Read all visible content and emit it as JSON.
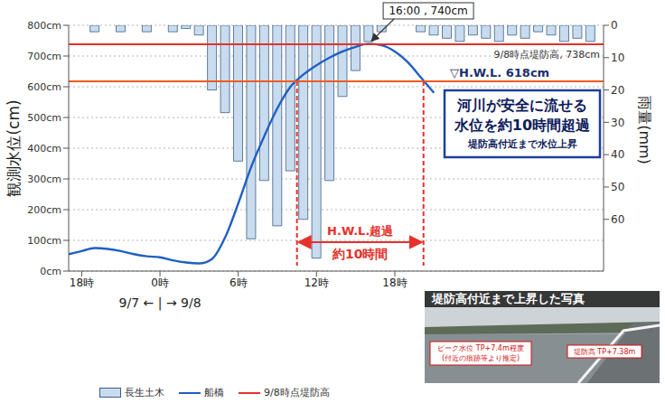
{
  "chart_data": {
    "type": "combo",
    "x": [
      17,
      18,
      19,
      20,
      21,
      22,
      23,
      24,
      25,
      26,
      27,
      28,
      29,
      30,
      31,
      32,
      33,
      34,
      35,
      36,
      37,
      38,
      39,
      40,
      41,
      42,
      43,
      44,
      45,
      46,
      47,
      48,
      49,
      50,
      51,
      52,
      53,
      54,
      55,
      56,
      57
    ],
    "xlim": [
      17,
      58
    ],
    "xticks": [
      {
        "value": 18,
        "label": "18時"
      },
      {
        "value": 24,
        "label": "0時"
      },
      {
        "value": 30,
        "label": "6時"
      },
      {
        "value": 36,
        "label": "12時"
      },
      {
        "value": 42,
        "label": "18時"
      }
    ],
    "y_label": "観測水位(cm)",
    "ylim": [
      0,
      800
    ],
    "yticks": [
      {
        "value": 0,
        "label": "0cm"
      },
      {
        "value": 100,
        "label": "100cm"
      },
      {
        "value": 200,
        "label": "200cm"
      },
      {
        "value": 300,
        "label": "300cm"
      },
      {
        "value": 400,
        "label": "400cm"
      },
      {
        "value": 500,
        "label": "500cm"
      },
      {
        "value": 600,
        "label": "600cm"
      },
      {
        "value": 700,
        "label": "700cm"
      },
      {
        "value": 800,
        "label": "800cm"
      }
    ],
    "y2_label": "雨量(mm)",
    "y2lim": [
      76,
      0
    ],
    "y2ticks": [
      0,
      10,
      20,
      30,
      40,
      50,
      60
    ],
    "grid": true,
    "legend": "bottom",
    "series": [
      {
        "name": "長生土木",
        "type": "bar",
        "axis": "y2",
        "color": "#c9dcef",
        "values": [
          null,
          0,
          2,
          0,
          2,
          0,
          2,
          0,
          2,
          1,
          3,
          20,
          27,
          42,
          66,
          48,
          62,
          45,
          60,
          72,
          48,
          22,
          14,
          5,
          2,
          0,
          0,
          2,
          3,
          4,
          5,
          3,
          4,
          5,
          3,
          4,
          2,
          3,
          5,
          4,
          5
        ]
      },
      {
        "name": "船橋",
        "type": "line",
        "axis": "y",
        "color": "#1f5fc4",
        "marker": "none",
        "line_style": "solid",
        "values": [
          55,
          65,
          75,
          72,
          65,
          55,
          48,
          45,
          35,
          28,
          25,
          40,
          110,
          220,
          340,
          440,
          530,
          600,
          640,
          670,
          695,
          715,
          730,
          740,
          735,
          715,
          680,
          630,
          580,
          null,
          null,
          null,
          null,
          null,
          null,
          null,
          null,
          null,
          null,
          null,
          null
        ]
      }
    ],
    "reference_lines": [
      {
        "name": "9/8時点堤防高",
        "y": 738,
        "color": "#e8302a",
        "label": "9/8時点堤防高, 738cm"
      },
      {
        "y": 618,
        "color": "#ef5b22",
        "label": "▽H.W.L. 618cm"
      }
    ],
    "peak": {
      "text": "16:00 , 740cm",
      "x": 40,
      "y": 740
    },
    "exceedance": {
      "text": "H.W.L.超過",
      "subtext": "約10時間",
      "x": [
        34.5,
        44.2
      ]
    },
    "date_divider": {
      "text": "9/7 ← | → 9/8",
      "x": 24
    },
    "callout": {
      "lines": [
        "河川が安全に流せる",
        "水位を約10時間超過",
        "堤防高付近まで水位上昇"
      ]
    },
    "photo": {
      "title": "堤防高付近まで上昇した写真",
      "labels": [
        [
          "ピーク水位 TP+7.4m程度",
          "(付近の痕跡等より推定)"
        ],
        [
          "堤防高 TP+7.38m"
        ]
      ]
    }
  }
}
